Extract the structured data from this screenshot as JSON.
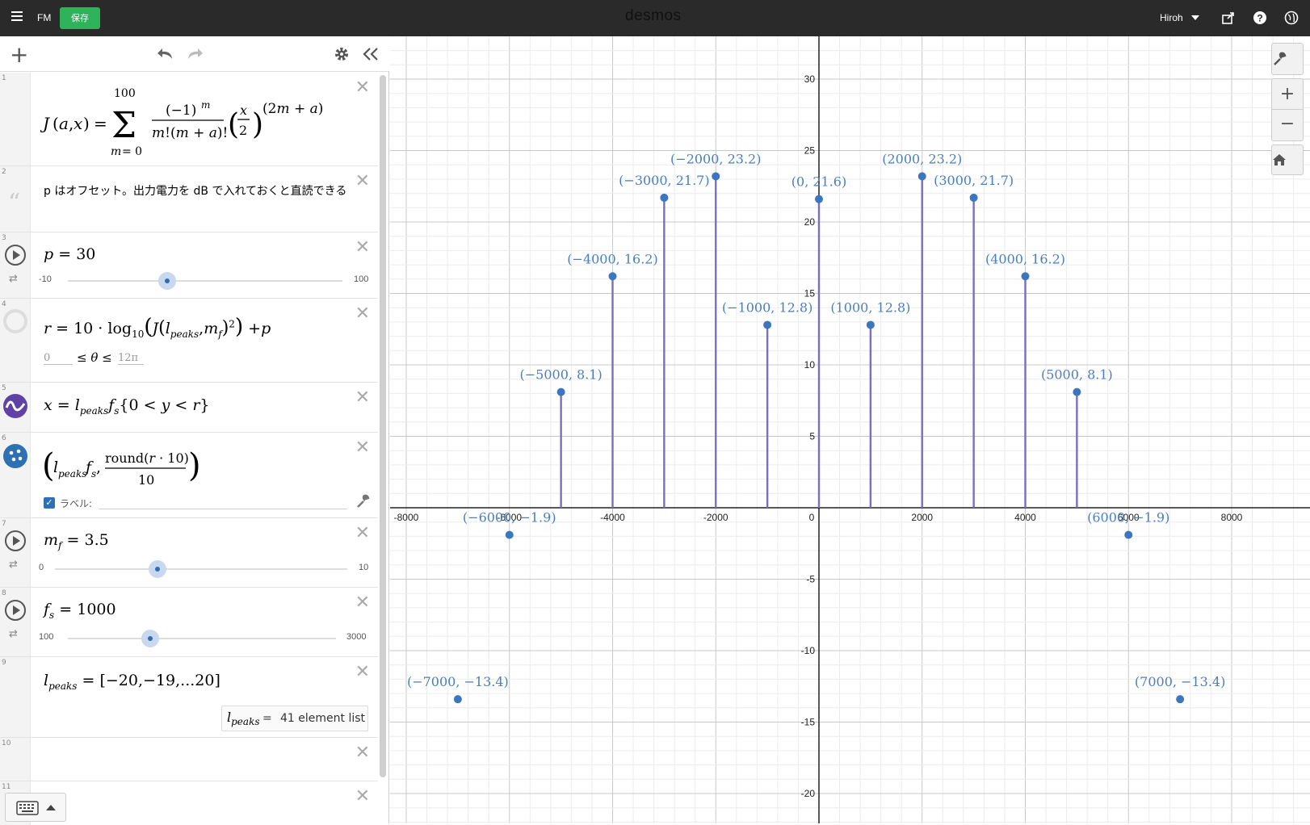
{
  "topbar": {
    "file_name": "FM",
    "save_label": "保存",
    "brand": "desmos",
    "user": "Hiroh"
  },
  "expressions": [
    {
      "num": "1",
      "type": "formula",
      "latex": "J(a,x) = Σ_{m=0}^{100} (−1)^m / (m!(m+a)!) (x/2)^{(2m+a)}"
    },
    {
      "num": "2",
      "type": "note",
      "text": "p はオフセット。出力電力を dB で入れておくと直読できる"
    },
    {
      "num": "3",
      "type": "slider",
      "var": "p",
      "value": "30",
      "min": "-10",
      "max": "100"
    },
    {
      "num": "4",
      "type": "formula",
      "theta_min": "0",
      "theta_max": "12π"
    },
    {
      "num": "5",
      "type": "formula"
    },
    {
      "num": "6",
      "type": "points",
      "label_checkbox": "ラベル:"
    },
    {
      "num": "7",
      "type": "slider",
      "var": "m_f",
      "value": "3.5",
      "min": "0",
      "max": "10"
    },
    {
      "num": "8",
      "type": "slider",
      "var": "f_s",
      "value": "1000",
      "min": "100",
      "max": "3000"
    },
    {
      "num": "9",
      "type": "list",
      "value": "[−20,−19,...20]",
      "result": "41 element list"
    },
    {
      "num": "10",
      "type": "empty"
    },
    {
      "num": "11",
      "type": "empty"
    }
  ],
  "colors": {
    "stem": "#7b6cc4",
    "point": "#3b76bf",
    "label": "#4a7fbd",
    "save": "#2eb35a"
  },
  "chart_data": {
    "type": "scatter",
    "title": "",
    "xlim": [
      -8000,
      8000
    ],
    "ylim": [
      -20,
      30
    ],
    "x_ticks": [
      -8000,
      -6000,
      -4000,
      -2000,
      0,
      2000,
      4000,
      6000,
      8000
    ],
    "y_ticks": [
      -20,
      -15,
      -10,
      -5,
      5,
      10,
      15,
      20,
      25,
      30
    ],
    "grid": true,
    "points": [
      {
        "x": -7000,
        "y": -13.4,
        "label": "(−7000, −13.4)"
      },
      {
        "x": -6000,
        "y": -1.9,
        "label": "(−6000, −1.9)"
      },
      {
        "x": -5000,
        "y": 8.1,
        "label": "(−5000, 8.1)"
      },
      {
        "x": -4000,
        "y": 16.2,
        "label": "(−4000, 16.2)"
      },
      {
        "x": -3000,
        "y": 21.7,
        "label": "(−3000, 21.7)"
      },
      {
        "x": -2000,
        "y": 23.2,
        "label": "(−2000, 23.2)"
      },
      {
        "x": -1000,
        "y": 12.8,
        "label": "(−1000, 12.8)"
      },
      {
        "x": 0,
        "y": 21.6,
        "label": "(0, 21.6)"
      },
      {
        "x": 1000,
        "y": 12.8,
        "label": "(1000, 12.8)"
      },
      {
        "x": 2000,
        "y": 23.2,
        "label": "(2000, 23.2)"
      },
      {
        "x": 3000,
        "y": 21.7,
        "label": "(3000, 21.7)"
      },
      {
        "x": 4000,
        "y": 16.2,
        "label": "(4000, 16.2)"
      },
      {
        "x": 5000,
        "y": 8.1,
        "label": "(5000, 8.1)"
      },
      {
        "x": 6000,
        "y": -1.9,
        "label": "(6000, −1.9)"
      },
      {
        "x": 7000,
        "y": -13.4,
        "label": "(7000, −13.4)"
      }
    ]
  }
}
